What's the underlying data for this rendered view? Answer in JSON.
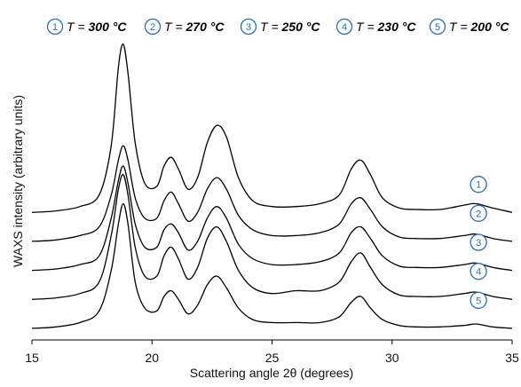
{
  "chart_data": {
    "type": "line",
    "xlabel": "Scattering angle 2θ (degrees)",
    "ylabel": "WAXS intensity  (arbitrary units)",
    "xlim": [
      15,
      35
    ],
    "x_ticks": [
      15,
      20,
      25,
      30,
      35
    ],
    "y_ticks_shown": false,
    "grid": false,
    "legend_position": "top",
    "legend": [
      {
        "marker": "1",
        "prefix": "T = ",
        "value": "300 °C"
      },
      {
        "marker": "2",
        "prefix": "T = ",
        "value": "270 °C"
      },
      {
        "marker": "3",
        "prefix": "T = ",
        "value": "250 °C"
      },
      {
        "marker": "4",
        "prefix": "T = ",
        "value": "230 °C"
      },
      {
        "marker": "5",
        "prefix": "T = ",
        "value": "200 °C"
      }
    ],
    "series": [
      {
        "marker": "1",
        "offset": 0.32,
        "x": [
          15,
          16,
          17,
          17.8,
          18.3,
          18.6,
          18.8,
          19.0,
          19.3,
          19.7,
          20.2,
          20.5,
          20.8,
          21.1,
          21.5,
          21.9,
          22.3,
          22.7,
          23.1,
          23.6,
          24.2,
          25,
          26,
          27,
          27.8,
          28.3,
          28.7,
          29.1,
          29.6,
          30.3,
          31,
          32,
          33,
          33.5,
          34.2,
          35
        ],
        "y": [
          0.02,
          0.025,
          0.04,
          0.08,
          0.25,
          0.52,
          0.6,
          0.5,
          0.26,
          0.12,
          0.11,
          0.18,
          0.21,
          0.17,
          0.1,
          0.14,
          0.26,
          0.32,
          0.28,
          0.14,
          0.06,
          0.04,
          0.04,
          0.05,
          0.08,
          0.17,
          0.2,
          0.15,
          0.07,
          0.035,
          0.03,
          0.03,
          0.045,
          0.05,
          0.035,
          0.02
        ]
      },
      {
        "marker": "2",
        "offset": 0.22,
        "x": [
          15,
          16,
          17,
          17.8,
          18.3,
          18.6,
          18.8,
          19.0,
          19.3,
          19.7,
          20.2,
          20.5,
          20.8,
          21.1,
          21.5,
          21.9,
          22.3,
          22.7,
          23.1,
          23.6,
          24.2,
          25,
          26,
          27,
          27.8,
          28.3,
          28.7,
          29.1,
          29.6,
          30.3,
          31,
          32,
          33,
          33.5,
          34.2,
          35
        ],
        "y": [
          0.02,
          0.025,
          0.04,
          0.07,
          0.18,
          0.3,
          0.35,
          0.3,
          0.17,
          0.1,
          0.1,
          0.16,
          0.19,
          0.15,
          0.09,
          0.12,
          0.2,
          0.24,
          0.2,
          0.11,
          0.06,
          0.04,
          0.04,
          0.05,
          0.08,
          0.15,
          0.17,
          0.13,
          0.07,
          0.035,
          0.03,
          0.03,
          0.04,
          0.045,
          0.03,
          0.02
        ]
      },
      {
        "marker": "3",
        "offset": 0.12,
        "x": [
          15,
          16,
          17,
          17.8,
          18.3,
          18.6,
          18.8,
          19.0,
          19.3,
          19.7,
          20.2,
          20.5,
          20.8,
          21.1,
          21.5,
          21.9,
          22.3,
          22.7,
          23.1,
          23.6,
          24.2,
          25,
          26,
          27,
          27.8,
          28.3,
          28.7,
          29.1,
          29.6,
          30.3,
          31,
          32,
          33,
          33.5,
          34.2,
          35
        ],
        "y": [
          0.02,
          0.025,
          0.04,
          0.07,
          0.2,
          0.33,
          0.38,
          0.32,
          0.18,
          0.1,
          0.1,
          0.16,
          0.18,
          0.15,
          0.09,
          0.12,
          0.2,
          0.24,
          0.2,
          0.11,
          0.06,
          0.04,
          0.04,
          0.05,
          0.08,
          0.15,
          0.17,
          0.13,
          0.07,
          0.035,
          0.03,
          0.03,
          0.04,
          0.045,
          0.03,
          0.02
        ]
      },
      {
        "marker": "4",
        "offset": 0.02,
        "x": [
          15,
          16,
          17,
          17.8,
          18.3,
          18.6,
          18.8,
          19.0,
          19.3,
          19.7,
          20.2,
          20.5,
          20.8,
          21.1,
          21.5,
          21.9,
          22.3,
          22.7,
          23.1,
          23.6,
          24.2,
          25,
          26,
          27,
          27.8,
          28.3,
          28.7,
          29.1,
          29.6,
          30.3,
          31,
          32,
          33,
          33.5,
          34.2,
          35
        ],
        "y": [
          0.02,
          0.025,
          0.04,
          0.08,
          0.24,
          0.4,
          0.45,
          0.38,
          0.2,
          0.1,
          0.1,
          0.17,
          0.2,
          0.16,
          0.09,
          0.13,
          0.23,
          0.27,
          0.22,
          0.12,
          0.06,
          0.04,
          0.05,
          0.05,
          0.08,
          0.15,
          0.18,
          0.13,
          0.07,
          0.035,
          0.03,
          0.03,
          0.04,
          0.045,
          0.03,
          0.02
        ]
      },
      {
        "marker": "5",
        "offset": -0.08,
        "x": [
          15,
          16,
          17,
          17.8,
          18.3,
          18.6,
          18.8,
          19.0,
          19.3,
          19.7,
          20.2,
          20.5,
          20.8,
          21.1,
          21.5,
          21.9,
          22.3,
          22.7,
          23.1,
          23.6,
          24.2,
          25,
          26,
          27,
          27.8,
          28.3,
          28.7,
          29.1,
          29.6,
          30.3,
          31,
          32,
          33,
          33.5,
          34.2,
          35
        ],
        "y": [
          0.02,
          0.025,
          0.04,
          0.08,
          0.22,
          0.38,
          0.45,
          0.38,
          0.18,
          0.09,
          0.08,
          0.13,
          0.15,
          0.12,
          0.07,
          0.1,
          0.17,
          0.2,
          0.16,
          0.09,
          0.05,
          0.04,
          0.04,
          0.04,
          0.06,
          0.11,
          0.13,
          0.09,
          0.05,
          0.03,
          0.025,
          0.025,
          0.03,
          0.035,
          0.025,
          0.02
        ]
      }
    ]
  }
}
